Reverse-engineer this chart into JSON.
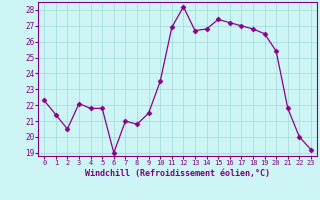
{
  "x": [
    0,
    1,
    2,
    3,
    4,
    5,
    6,
    7,
    8,
    9,
    10,
    11,
    12,
    13,
    14,
    15,
    16,
    17,
    18,
    19,
    20,
    21,
    22,
    23
  ],
  "y": [
    22.3,
    21.4,
    20.5,
    22.1,
    21.8,
    21.8,
    19.0,
    21.0,
    20.8,
    21.5,
    23.5,
    26.9,
    28.2,
    26.7,
    26.8,
    27.4,
    27.2,
    27.0,
    26.8,
    26.5,
    25.4,
    21.8,
    20.0,
    19.2
  ],
  "line_color": "#8B008B",
  "marker": "D",
  "marker_size": 2.5,
  "bg_color": "#cef5f5",
  "grid_color": "#aadddd",
  "xlabel": "Windchill (Refroidissement éolien,°C)",
  "ylabel": "",
  "ylim": [
    18.8,
    28.5
  ],
  "xlim": [
    -0.5,
    23.5
  ],
  "yticks": [
    19,
    20,
    21,
    22,
    23,
    24,
    25,
    26,
    27,
    28
  ],
  "xticks": [
    0,
    1,
    2,
    3,
    4,
    5,
    6,
    7,
    8,
    9,
    10,
    11,
    12,
    13,
    14,
    15,
    16,
    17,
    18,
    19,
    20,
    21,
    22,
    23
  ],
  "tick_color": "#800080",
  "label_color": "#800080",
  "xtick_fontsize": 5.0,
  "ytick_fontsize": 5.5,
  "xlabel_fontsize": 6.0
}
